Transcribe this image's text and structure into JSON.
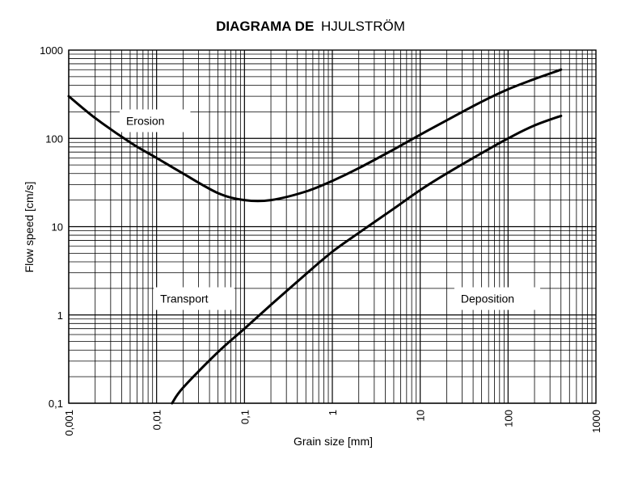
{
  "chart_data": {
    "type": "line",
    "title_bold": "DIAGRAMA DE",
    "title_rest": "HJULSTRÖM",
    "xlabel": "Grain size [mm]",
    "ylabel": "Flow speed [cm/s]",
    "x_scale": "log",
    "y_scale": "log",
    "xlim": [
      0.001,
      1000
    ],
    "ylim": [
      0.1,
      1000
    ],
    "x_ticks": [
      "0,001",
      "0,01",
      "0,1",
      "1",
      "10",
      "100",
      "1000"
    ],
    "y_ticks": [
      "0,1",
      "1",
      "10",
      "100",
      "1000"
    ],
    "grid": true,
    "series": [
      {
        "x": [
          0.001,
          0.002,
          0.005,
          0.01,
          0.02,
          0.05,
          0.1,
          0.2,
          0.5,
          1,
          2,
          5,
          10,
          20,
          50,
          100,
          200,
          400
        ],
        "y": [
          300,
          170,
          90,
          60,
          40,
          24,
          20,
          20,
          25,
          33,
          46,
          75,
          110,
          160,
          260,
          360,
          470,
          600
        ]
      },
      {
        "x": [
          0.015,
          0.02,
          0.05,
          0.1,
          0.2,
          0.5,
          1,
          2,
          5,
          10,
          20,
          50,
          100,
          200,
          400
        ],
        "y": [
          0.1,
          0.15,
          0.38,
          0.7,
          1.3,
          2.9,
          5.2,
          8.5,
          16,
          26,
          40,
          68,
          100,
          140,
          180
        ]
      }
    ],
    "annotations": [
      {
        "text": "Erosion",
        "x": 0.0045,
        "y": 155
      },
      {
        "text": "Transport",
        "x": 0.011,
        "y": 1.5
      },
      {
        "text": "Deposition",
        "x": 29,
        "y": 1.5
      }
    ]
  }
}
